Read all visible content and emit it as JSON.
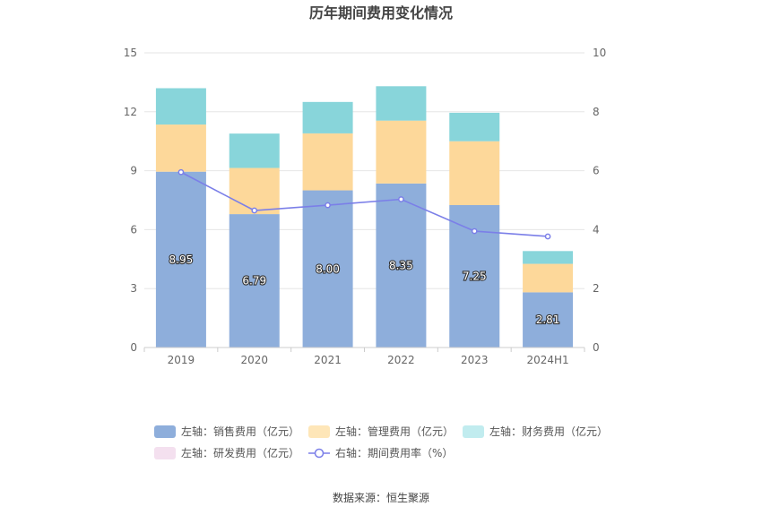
{
  "chart_data": {
    "type": "bar",
    "title": "历年期间费用变化情况",
    "categories": [
      "2019",
      "2020",
      "2021",
      "2022",
      "2023",
      "2024H1"
    ],
    "y_left": {
      "range": [
        0,
        15
      ],
      "ticks": [
        "0",
        "3",
        "6",
        "9",
        "12",
        "15"
      ]
    },
    "y_right": {
      "range": [
        0,
        10
      ],
      "ticks": [
        "0",
        "2",
        "4",
        "6",
        "8",
        "10"
      ]
    },
    "stacked": true,
    "series": [
      {
        "name": "左轴：销售费用（亿元）",
        "type": "bar",
        "axis": "left",
        "color": "#8eaedb",
        "values": [
          8.95,
          6.79,
          8.0,
          8.35,
          7.25,
          2.81
        ],
        "labels": [
          "8.95",
          "6.79",
          "8.00",
          "8.35",
          "7.25",
          "2.81"
        ]
      },
      {
        "name": "左轴：管理费用（亿元）",
        "type": "bar",
        "axis": "left",
        "color": "#fdd89a",
        "values": [
          2.4,
          2.35,
          2.9,
          3.2,
          3.25,
          1.45
        ]
      },
      {
        "name": "左轴：财务费用（亿元）",
        "type": "bar",
        "axis": "left",
        "color": "#88d5da",
        "values": [
          1.85,
          1.75,
          1.6,
          1.75,
          1.45,
          0.65
        ]
      },
      {
        "name": "左轴：研发费用（亿元）",
        "type": "bar",
        "axis": "left",
        "color": "#f2d9ec",
        "values": [
          0,
          0,
          0,
          0,
          0,
          0
        ]
      },
      {
        "name": "右轴：期间费用率（%）",
        "type": "line",
        "axis": "right",
        "color": "#7b7fe8",
        "values": [
          5.95,
          4.65,
          4.83,
          5.03,
          3.95,
          3.77
        ]
      }
    ],
    "legend_colors": [
      "#8eaedb",
      "#fee6b8",
      "#c1ecef",
      "#f4e0ef",
      "#7b7fe8"
    ],
    "grid": true,
    "legend_position": "bottom"
  },
  "source_text": "数据来源：恒生聚源"
}
